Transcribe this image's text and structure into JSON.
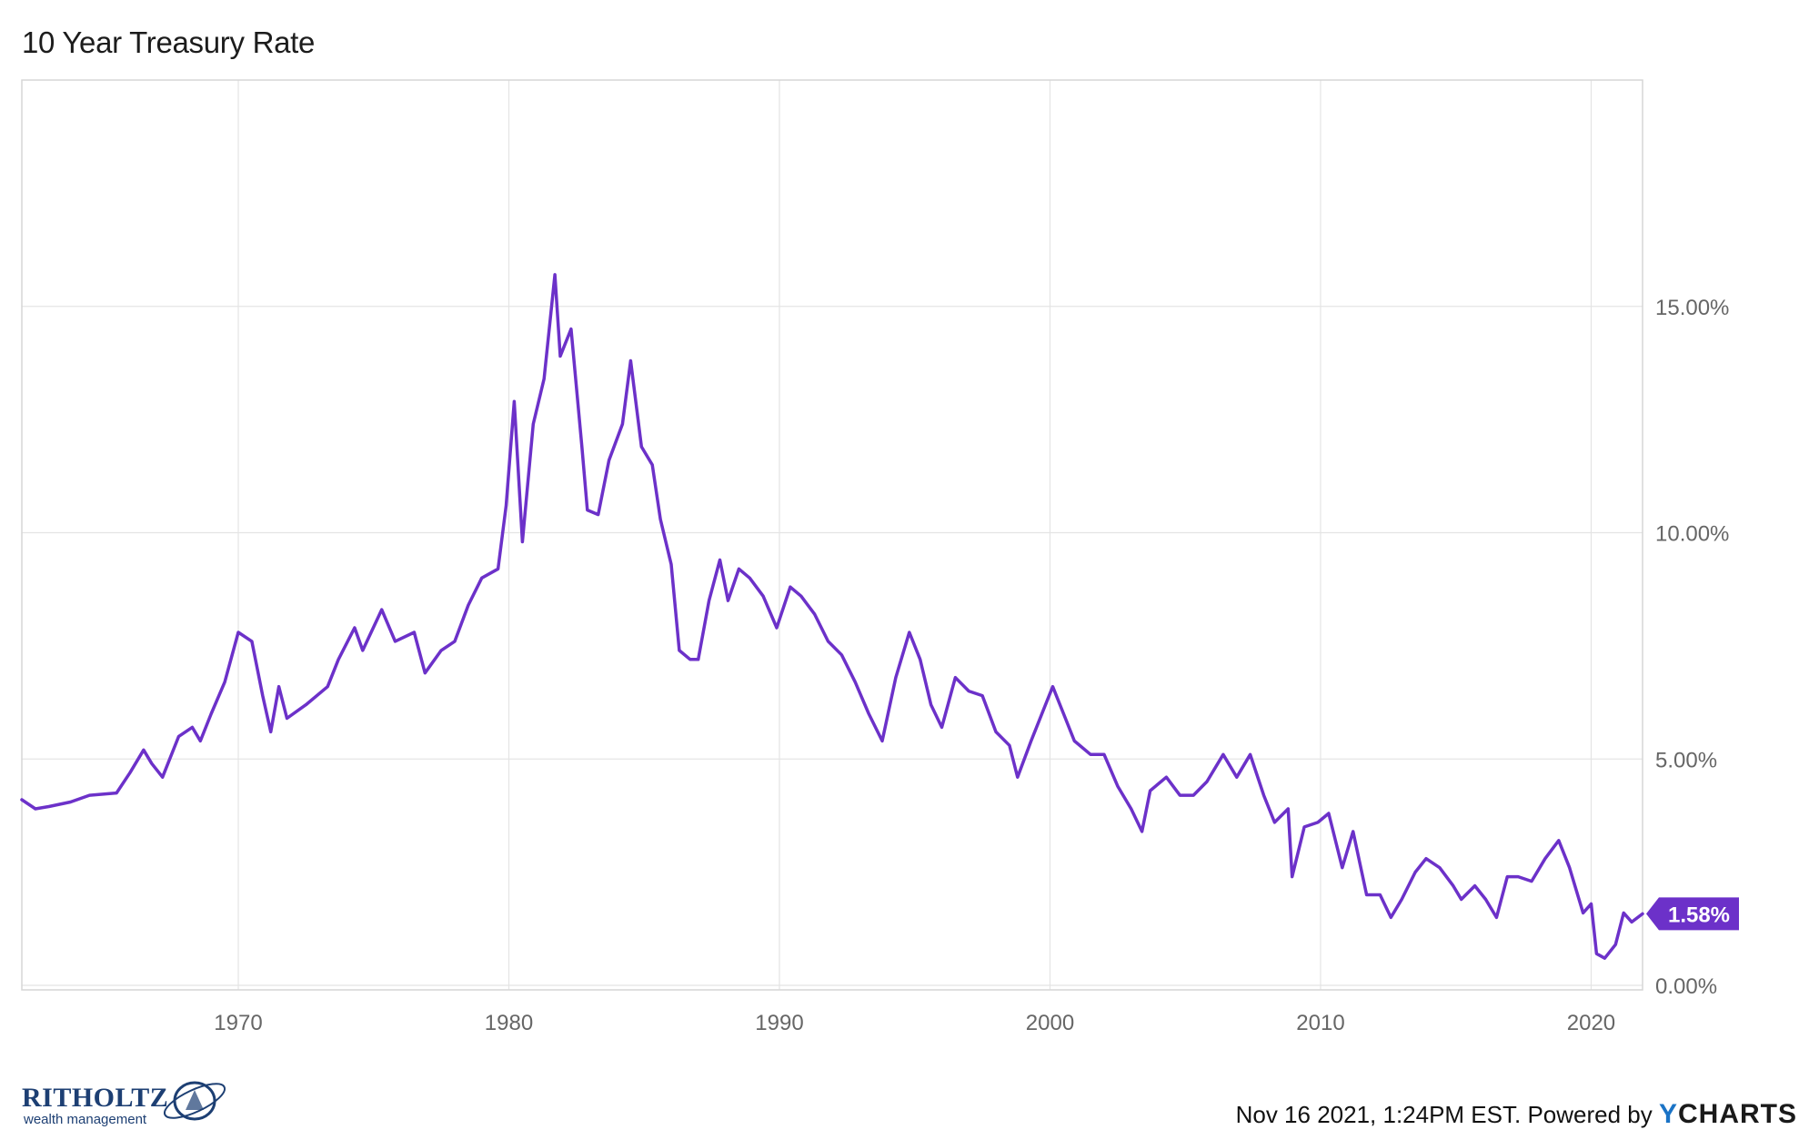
{
  "title": "10 Year Treasury Rate",
  "footer": {
    "timestamp": "Nov 16 2021, 1:24PM EST. Powered by",
    "brand_y": "Y",
    "brand_rest": "CHARTS"
  },
  "logo": {
    "name": "RITHOLTZ",
    "tagline": "wealth management"
  },
  "colors": {
    "line": "#6c31c9",
    "grid": "#e4e4e4",
    "badge_bg": "#6c31c9",
    "badge_text": "#ffffff"
  },
  "chart_data": {
    "type": "line",
    "title": "10 Year Treasury Rate",
    "xlabel": "",
    "ylabel": "",
    "xlim": [
      1962.0,
      2021.9
    ],
    "ylim": [
      -0.1,
      20.0
    ],
    "x_ticks": [
      1970,
      1980,
      1990,
      2000,
      2010,
      2020
    ],
    "x_tick_labels": [
      "1970",
      "1980",
      "1990",
      "2000",
      "2010",
      "2020"
    ],
    "y_ticks": [
      0,
      5,
      10,
      15
    ],
    "y_tick_labels": [
      "0.00%",
      "5.00%",
      "10.00%",
      "15.00%"
    ],
    "grid": true,
    "last_value_label": "1.58%",
    "series": [
      {
        "points": [
          [
            1962.0,
            4.1
          ],
          [
            1962.5,
            3.9
          ],
          [
            1963.0,
            3.95
          ],
          [
            1963.8,
            4.05
          ],
          [
            1964.5,
            4.2
          ],
          [
            1965.5,
            4.25
          ],
          [
            1966.0,
            4.7
          ],
          [
            1966.5,
            5.2
          ],
          [
            1966.8,
            4.9
          ],
          [
            1967.2,
            4.6
          ],
          [
            1967.8,
            5.5
          ],
          [
            1968.3,
            5.7
          ],
          [
            1968.6,
            5.4
          ],
          [
            1969.0,
            6.0
          ],
          [
            1969.5,
            6.7
          ],
          [
            1970.0,
            7.8
          ],
          [
            1970.5,
            7.6
          ],
          [
            1970.9,
            6.4
          ],
          [
            1971.2,
            5.6
          ],
          [
            1971.5,
            6.6
          ],
          [
            1971.8,
            5.9
          ],
          [
            1972.5,
            6.2
          ],
          [
            1973.3,
            6.6
          ],
          [
            1973.7,
            7.2
          ],
          [
            1974.3,
            7.9
          ],
          [
            1974.6,
            7.4
          ],
          [
            1975.3,
            8.3
          ],
          [
            1975.8,
            7.6
          ],
          [
            1976.5,
            7.8
          ],
          [
            1976.9,
            6.9
          ],
          [
            1977.5,
            7.4
          ],
          [
            1978.0,
            7.6
          ],
          [
            1978.5,
            8.4
          ],
          [
            1979.0,
            9.0
          ],
          [
            1979.6,
            9.2
          ],
          [
            1979.9,
            10.6
          ],
          [
            1980.2,
            12.9
          ],
          [
            1980.5,
            9.8
          ],
          [
            1980.9,
            12.4
          ],
          [
            1981.3,
            13.4
          ],
          [
            1981.7,
            15.7
          ],
          [
            1981.9,
            13.9
          ],
          [
            1982.3,
            14.5
          ],
          [
            1982.7,
            11.9
          ],
          [
            1982.9,
            10.5
          ],
          [
            1983.3,
            10.4
          ],
          [
            1983.7,
            11.6
          ],
          [
            1984.2,
            12.4
          ],
          [
            1984.5,
            13.8
          ],
          [
            1984.9,
            11.9
          ],
          [
            1985.3,
            11.5
          ],
          [
            1985.6,
            10.3
          ],
          [
            1986.0,
            9.3
          ],
          [
            1986.3,
            7.4
          ],
          [
            1986.7,
            7.2
          ],
          [
            1987.0,
            7.2
          ],
          [
            1987.4,
            8.5
          ],
          [
            1987.8,
            9.4
          ],
          [
            1988.1,
            8.5
          ],
          [
            1988.5,
            9.2
          ],
          [
            1988.9,
            9.0
          ],
          [
            1989.4,
            8.6
          ],
          [
            1989.9,
            7.9
          ],
          [
            1990.4,
            8.8
          ],
          [
            1990.8,
            8.6
          ],
          [
            1991.3,
            8.2
          ],
          [
            1991.8,
            7.6
          ],
          [
            1992.3,
            7.3
          ],
          [
            1992.8,
            6.7
          ],
          [
            1993.3,
            6.0
          ],
          [
            1993.8,
            5.4
          ],
          [
            1994.3,
            6.8
          ],
          [
            1994.8,
            7.8
          ],
          [
            1995.2,
            7.2
          ],
          [
            1995.6,
            6.2
          ],
          [
            1996.0,
            5.7
          ],
          [
            1996.5,
            6.8
          ],
          [
            1997.0,
            6.5
          ],
          [
            1997.5,
            6.4
          ],
          [
            1998.0,
            5.6
          ],
          [
            1998.5,
            5.3
          ],
          [
            1998.8,
            4.6
          ],
          [
            1999.3,
            5.4
          ],
          [
            1999.9,
            6.3
          ],
          [
            2000.1,
            6.6
          ],
          [
            2000.5,
            6.0
          ],
          [
            2000.9,
            5.4
          ],
          [
            2001.5,
            5.1
          ],
          [
            2002.0,
            5.1
          ],
          [
            2002.5,
            4.4
          ],
          [
            2003.0,
            3.9
          ],
          [
            2003.4,
            3.4
          ],
          [
            2003.7,
            4.3
          ],
          [
            2004.3,
            4.6
          ],
          [
            2004.8,
            4.2
          ],
          [
            2005.3,
            4.2
          ],
          [
            2005.8,
            4.5
          ],
          [
            2006.4,
            5.1
          ],
          [
            2006.9,
            4.6
          ],
          [
            2007.4,
            5.1
          ],
          [
            2007.9,
            4.2
          ],
          [
            2008.3,
            3.6
          ],
          [
            2008.8,
            3.9
          ],
          [
            2008.95,
            2.4
          ],
          [
            2009.4,
            3.5
          ],
          [
            2009.9,
            3.6
          ],
          [
            2010.3,
            3.8
          ],
          [
            2010.8,
            2.6
          ],
          [
            2011.2,
            3.4
          ],
          [
            2011.7,
            2.0
          ],
          [
            2012.2,
            2.0
          ],
          [
            2012.6,
            1.5
          ],
          [
            2013.0,
            1.9
          ],
          [
            2013.5,
            2.5
          ],
          [
            2013.9,
            2.8
          ],
          [
            2014.4,
            2.6
          ],
          [
            2014.9,
            2.2
          ],
          [
            2015.2,
            1.9
          ],
          [
            2015.7,
            2.2
          ],
          [
            2016.1,
            1.9
          ],
          [
            2016.5,
            1.5
          ],
          [
            2016.9,
            2.4
          ],
          [
            2017.3,
            2.4
          ],
          [
            2017.8,
            2.3
          ],
          [
            2018.3,
            2.8
          ],
          [
            2018.8,
            3.2
          ],
          [
            2019.2,
            2.6
          ],
          [
            2019.7,
            1.6
          ],
          [
            2020.0,
            1.8
          ],
          [
            2020.2,
            0.7
          ],
          [
            2020.5,
            0.6
          ],
          [
            2020.9,
            0.9
          ],
          [
            2021.2,
            1.6
          ],
          [
            2021.5,
            1.4
          ],
          [
            2021.9,
            1.58
          ]
        ]
      }
    ]
  }
}
